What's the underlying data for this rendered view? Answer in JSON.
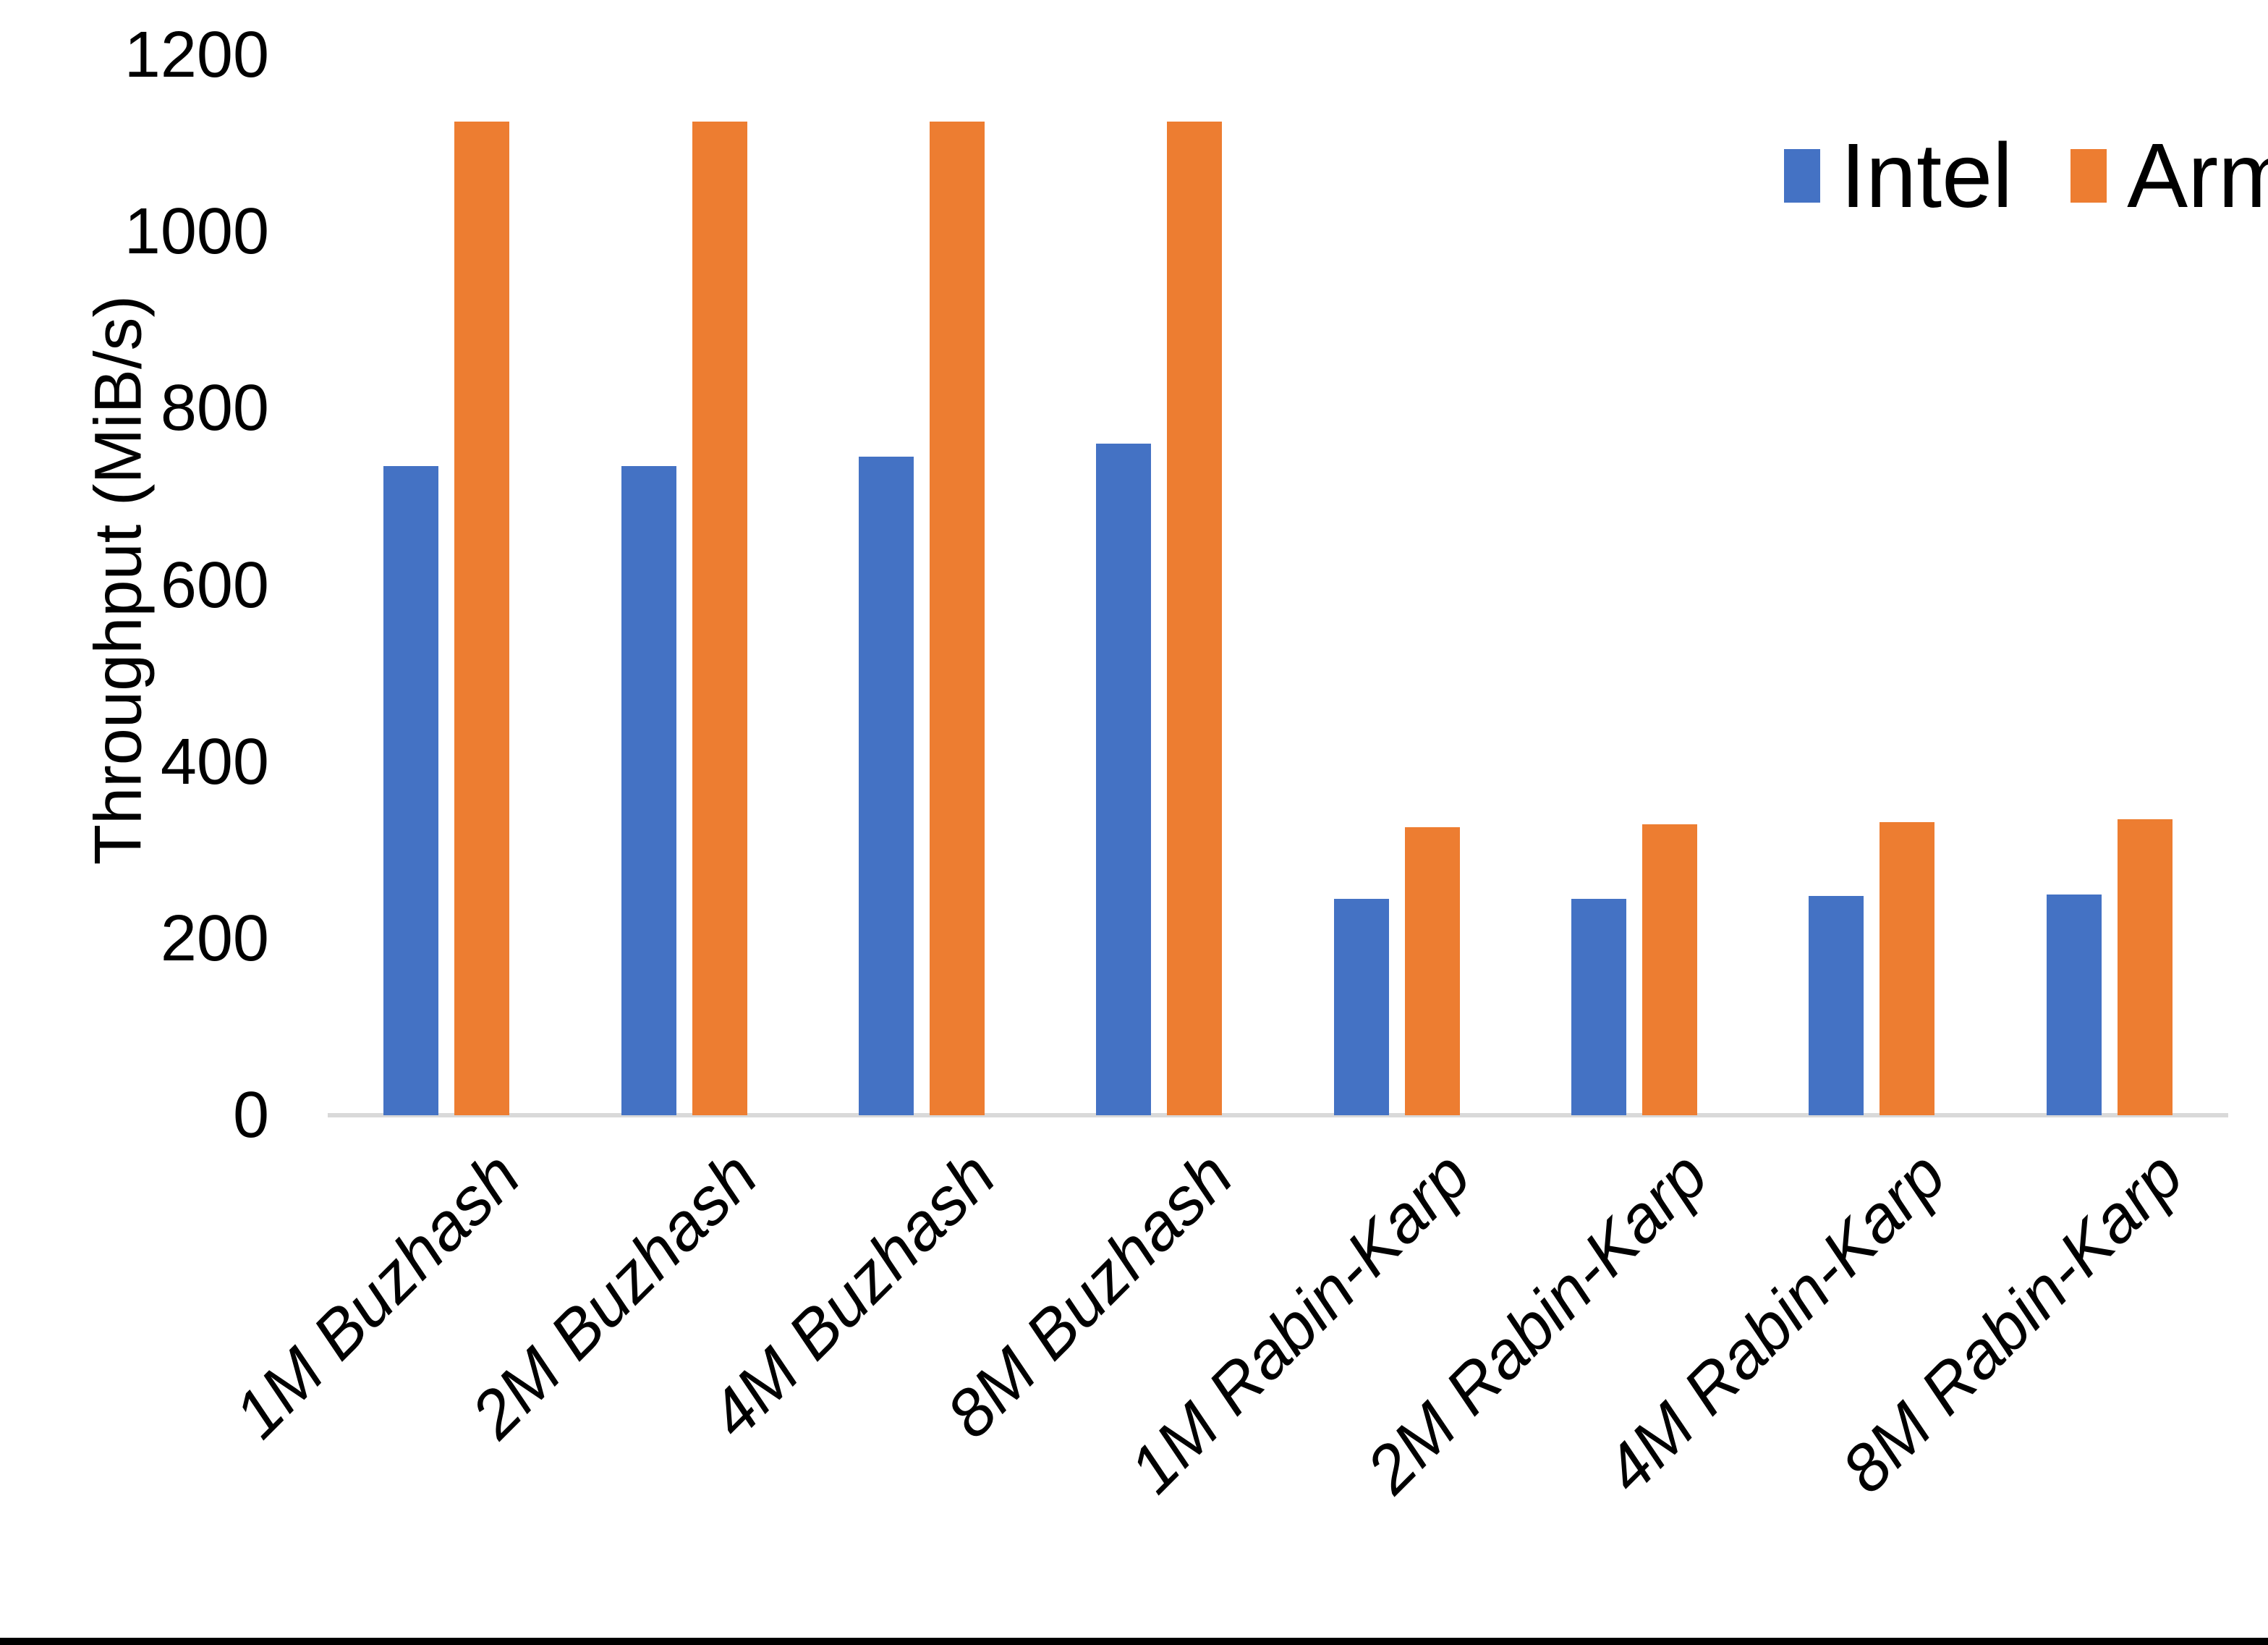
{
  "chart_data": {
    "type": "bar",
    "title": "",
    "xlabel": "",
    "ylabel": "Throughput (MiB/s)",
    "categories": [
      "1M Buzhash",
      "2M Buzhash",
      "4M Buzhash",
      "8M Buzhash",
      "1M Rabin-Karp",
      "2M Rabin-Karp",
      "4M Rabin-Karp",
      "8M Rabin-Karp"
    ],
    "series": [
      {
        "name": "Intel",
        "color": "#4472C4",
        "values": [
          735,
          735,
          745,
          760,
          245,
          245,
          248,
          250
        ]
      },
      {
        "name": "Arm",
        "color": "#ED7D31",
        "values": [
          1125,
          1125,
          1125,
          1125,
          326,
          329,
          332,
          335
        ]
      }
    ],
    "ylim": [
      0,
      1200
    ],
    "yticks": [
      0,
      200,
      400,
      600,
      800,
      1000,
      1200
    ],
    "grid": false,
    "legend_position": "top-right",
    "axis_line_color": "#D9D9D9"
  }
}
